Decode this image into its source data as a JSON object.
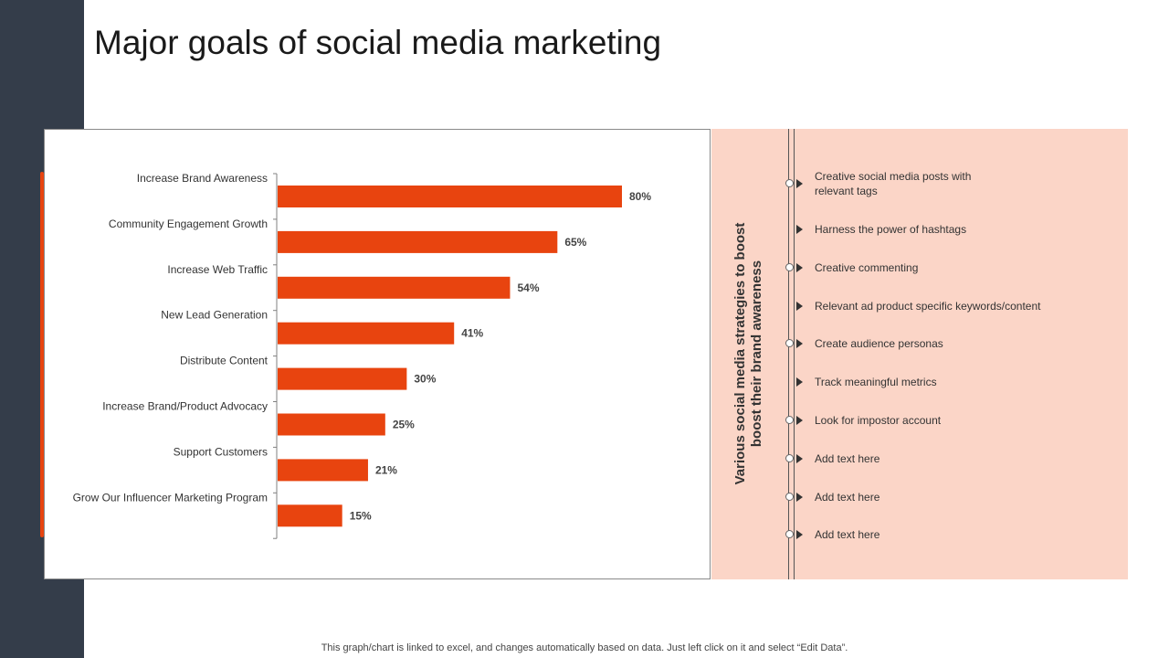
{
  "title": "Major goals of social media marketing",
  "chart_data": {
    "type": "bar",
    "orientation": "horizontal",
    "categories": [
      "Increase Brand Awareness",
      "Community Engagement Growth",
      "Increase Web Traffic",
      "New Lead Generation",
      "Distribute Content",
      "Increase Brand/Product Advocacy",
      "Support Customers",
      "Grow Our Influencer Marketing Program"
    ],
    "values": [
      80,
      65,
      54,
      41,
      30,
      25,
      21,
      15
    ],
    "value_labels": [
      "80%",
      "65%",
      "54%",
      "41%",
      "30%",
      "25%",
      "21%",
      "15%"
    ],
    "xlim": [
      0,
      100
    ],
    "bar_color": "#e8440f",
    "grid": false,
    "legend": "none"
  },
  "strategies": {
    "heading": "Various social media strategies to boost boost their brand awareness",
    "items": [
      "Creative  social media posts with relevant  tags",
      "Harness the power of hashtags",
      "Creative  commenting",
      "Relevant  ad product  specific keywords/content",
      "Create audience  personas",
      "Track meaningful  metrics",
      "Look for impostor account",
      "Add text here",
      "Add text here",
      "Add text here"
    ]
  },
  "footer": "This graph/chart is linked to excel,  and changes automatically based on data. Just left click on it and select “Edit Data”.",
  "colors": {
    "accent": "#e8440f",
    "sidebar": "#343d4a",
    "panel": "#fbd5c7"
  }
}
